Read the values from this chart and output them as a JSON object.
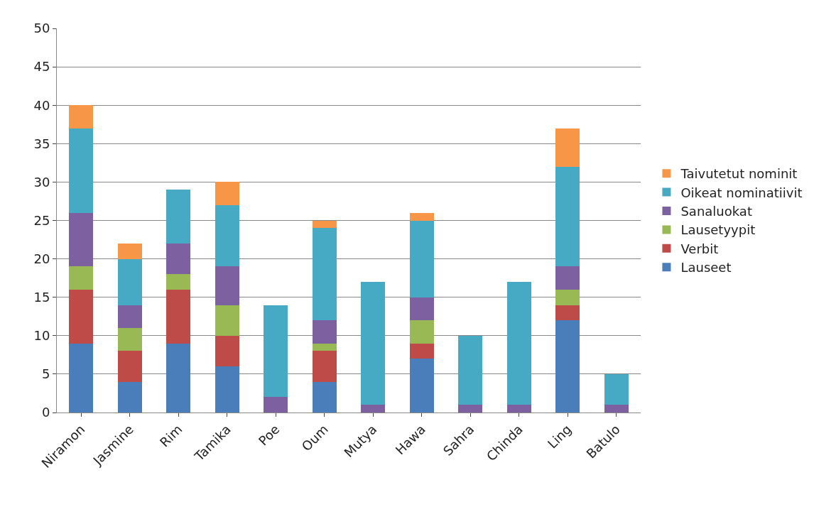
{
  "chart_data": {
    "type": "bar",
    "stacked": true,
    "categories": [
      "Niramon",
      "Jasmine",
      "Rim",
      "Tamika",
      "Poe",
      "Oum",
      "Mutya",
      "Hawa",
      "Sahra",
      "Chinda",
      "Ling",
      "Batulo"
    ],
    "series": [
      {
        "name": "Lauseet",
        "color": "#4a7ebb",
        "values": [
          9,
          4,
          9,
          6,
          0,
          4,
          0,
          7,
          0,
          0,
          12,
          0
        ]
      },
      {
        "name": "Verbit",
        "color": "#be4b48",
        "values": [
          7,
          4,
          7,
          4,
          0,
          4,
          0,
          2,
          0,
          0,
          2,
          0
        ]
      },
      {
        "name": "Lausetyypit",
        "color": "#98b954",
        "values": [
          3,
          3,
          2,
          4,
          0,
          1,
          0,
          3,
          0,
          0,
          2,
          0
        ]
      },
      {
        "name": "Sanaluokat",
        "color": "#7d60a0",
        "values": [
          7,
          3,
          4,
          5,
          2,
          3,
          1,
          3,
          1,
          1,
          3,
          1
        ]
      },
      {
        "name": "Oikeat nominatiivit",
        "color": "#46aac5",
        "values": [
          11,
          6,
          7,
          8,
          12,
          12,
          16,
          10,
          9,
          16,
          13,
          4
        ]
      },
      {
        "name": "Taivutetut nominit",
        "color": "#f79646",
        "values": [
          3,
          2,
          0,
          3,
          0,
          1,
          0,
          1,
          0,
          0,
          5,
          0
        ]
      }
    ],
    "ylim": [
      0,
      50
    ],
    "yticks": [
      0,
      5,
      10,
      15,
      20,
      25,
      30,
      35,
      40,
      45,
      50
    ],
    "grid": "y",
    "legend": "right"
  }
}
